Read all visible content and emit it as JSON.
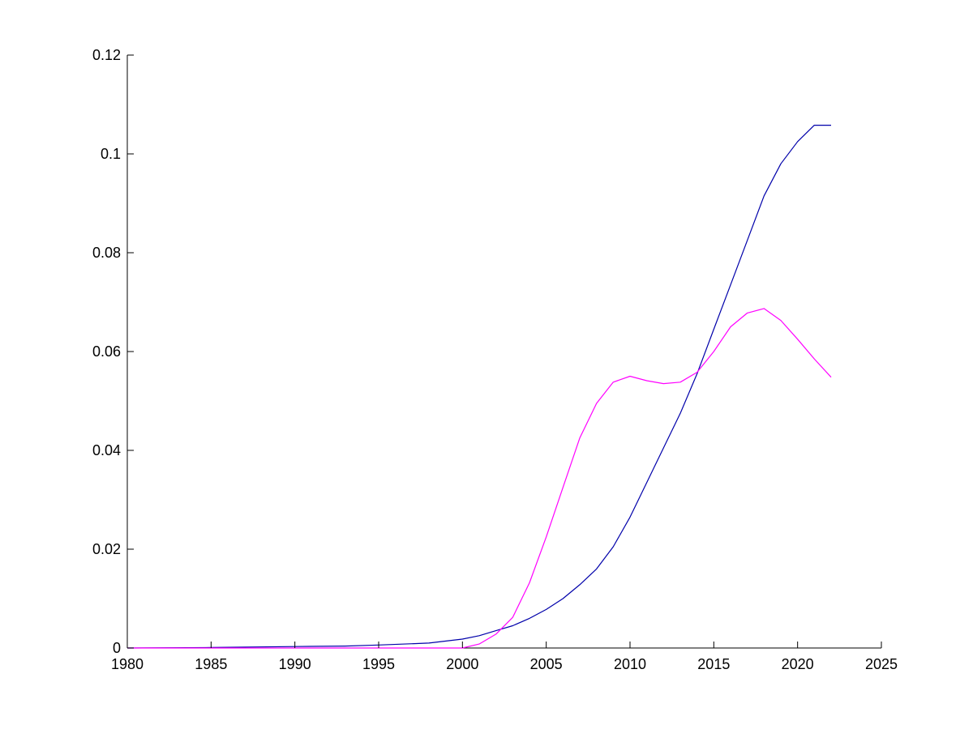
{
  "chart_data": {
    "type": "line",
    "title": "",
    "xlabel": "",
    "ylabel": "",
    "xlim": [
      1980,
      2025
    ],
    "ylim": [
      0,
      0.12
    ],
    "xticks": [
      1980,
      1985,
      1990,
      1995,
      2000,
      2005,
      2010,
      2015,
      2020,
      2025
    ],
    "xtick_labels": [
      "1980",
      "1985",
      "1990",
      "1995",
      "2000",
      "2005",
      "2010",
      "2015",
      "2020",
      "2025"
    ],
    "yticks": [
      0,
      0.02,
      0.04,
      0.06,
      0.08,
      0.1,
      0.12
    ],
    "ytick_labels": [
      "0",
      "0.02",
      "0.04",
      "0.06",
      "0.08",
      "0.1",
      "0.12"
    ],
    "grid": false,
    "series": [
      {
        "color": "#0000aa",
        "x": [
          1980,
          1985,
          1990,
          1993,
          1995,
          1998,
          2000,
          2001,
          2002,
          2003,
          2004,
          2005,
          2006,
          2007,
          2008,
          2009,
          2010,
          2011,
          2012,
          2013,
          2014,
          2015,
          2016,
          2017,
          2018,
          2019,
          2020,
          2021,
          2022
        ],
        "y": [
          0.0,
          0.0001,
          0.0003,
          0.0004,
          0.0006,
          0.001,
          0.0018,
          0.0025,
          0.0035,
          0.0045,
          0.006,
          0.0078,
          0.01,
          0.0128,
          0.016,
          0.0205,
          0.0265,
          0.0335,
          0.0405,
          0.0475,
          0.0555,
          0.0645,
          0.0735,
          0.0825,
          0.0915,
          0.098,
          0.1025,
          0.1058,
          0.1058
        ]
      },
      {
        "color": "#ff00ff",
        "x": [
          1980,
          1985,
          1990,
          1995,
          2000,
          2001,
          2002,
          2003,
          2004,
          2005,
          2006,
          2007,
          2008,
          2009,
          2010,
          2011,
          2012,
          2013,
          2014,
          2015,
          2016,
          2017,
          2018,
          2019,
          2020,
          2021,
          2022
        ],
        "y": [
          0.0,
          0.0,
          0.0,
          0.0,
          0.0,
          0.0008,
          0.0028,
          0.0062,
          0.0132,
          0.0225,
          0.0325,
          0.0425,
          0.0495,
          0.0538,
          0.055,
          0.0541,
          0.0535,
          0.0538,
          0.0558,
          0.06,
          0.065,
          0.0678,
          0.0687,
          0.0663,
          0.0625,
          0.0585,
          0.0548
        ]
      }
    ]
  }
}
